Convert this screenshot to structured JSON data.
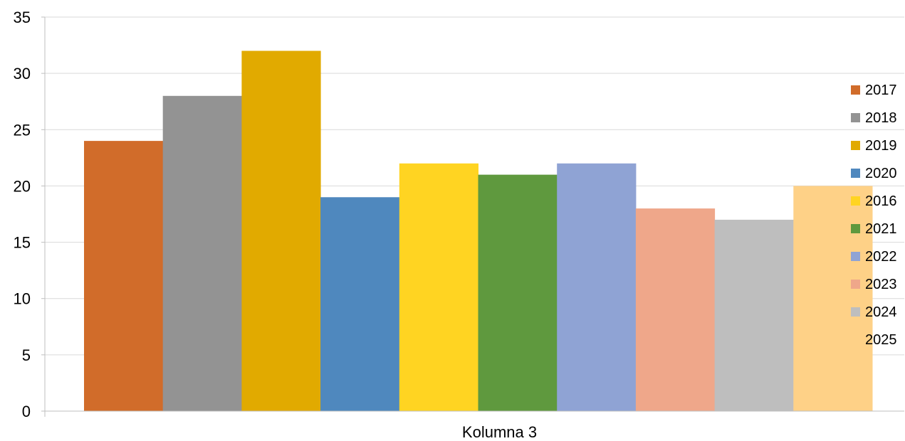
{
  "chart_data": {
    "type": "bar",
    "categories": [
      "Kolumna 3"
    ],
    "series": [
      {
        "name": "2017",
        "values": [
          24
        ],
        "color": "#D16C2A"
      },
      {
        "name": "2018",
        "values": [
          28
        ],
        "color": "#939393"
      },
      {
        "name": "2019",
        "values": [
          32
        ],
        "color": "#E1AA00"
      },
      {
        "name": "2020",
        "values": [
          19
        ],
        "color": "#4F88BE"
      },
      {
        "name": "2016",
        "values": [
          22
        ],
        "color": "#FFD422"
      },
      {
        "name": "2021",
        "values": [
          21
        ],
        "color": "#5F993E"
      },
      {
        "name": "2022",
        "values": [
          22
        ],
        "color": "#8FA3D4"
      },
      {
        "name": "2023",
        "values": [
          18
        ],
        "color": "#EFA78A"
      },
      {
        "name": "2024",
        "values": [
          17
        ],
        "color": "#BEBEBE"
      },
      {
        "name": "2025",
        "values": [
          20
        ],
        "color": "#FED187"
      }
    ],
    "title": "",
    "xlabel": "",
    "ylabel": "",
    "ylim": [
      0,
      35
    ],
    "yticks": [
      0,
      5,
      10,
      15,
      20,
      25,
      30,
      35
    ],
    "grid": true,
    "legend": "right"
  }
}
